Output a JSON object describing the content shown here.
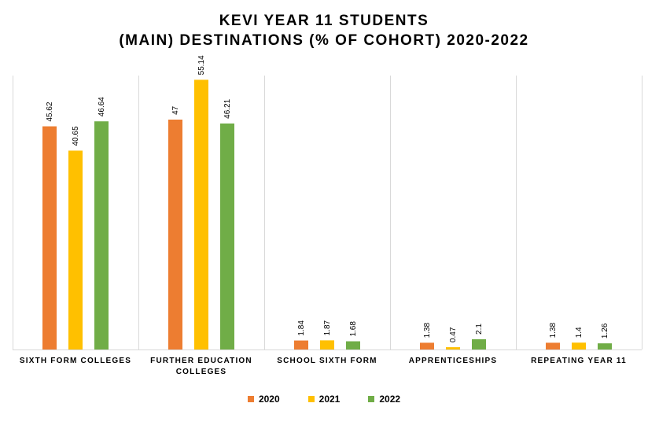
{
  "chart_data": {
    "type": "bar",
    "title_lines": [
      "KEVI YEAR 11 STUDENTS",
      "(MAIN) DESTINATIONS (% OF COHORT) 2020-2022"
    ],
    "categories": [
      [
        "SIXTH  FORM COLLEGES"
      ],
      [
        "FURTHER EDUCATION",
        "COLLEGES"
      ],
      [
        "SCHOOL SIXTH FORM"
      ],
      [
        "APPRENTICESHIPS"
      ],
      [
        "REPEATING YEAR 11"
      ]
    ],
    "series": [
      {
        "name": "2020",
        "color": "#ED7D31",
        "values": [
          45.62,
          47,
          1.84,
          1.38,
          1.38
        ]
      },
      {
        "name": "2021",
        "color": "#FFC000",
        "values": [
          40.65,
          55.14,
          1.87,
          0.47,
          1.4
        ]
      },
      {
        "name": "2022",
        "color": "#70AD47",
        "values": [
          46.64,
          46.21,
          1.68,
          2.1,
          1.26
        ]
      }
    ],
    "ylim": [
      0,
      56
    ],
    "xlabel": "",
    "ylabel": "",
    "grid": false,
    "category_separators": true,
    "legend_position": "bottom"
  }
}
